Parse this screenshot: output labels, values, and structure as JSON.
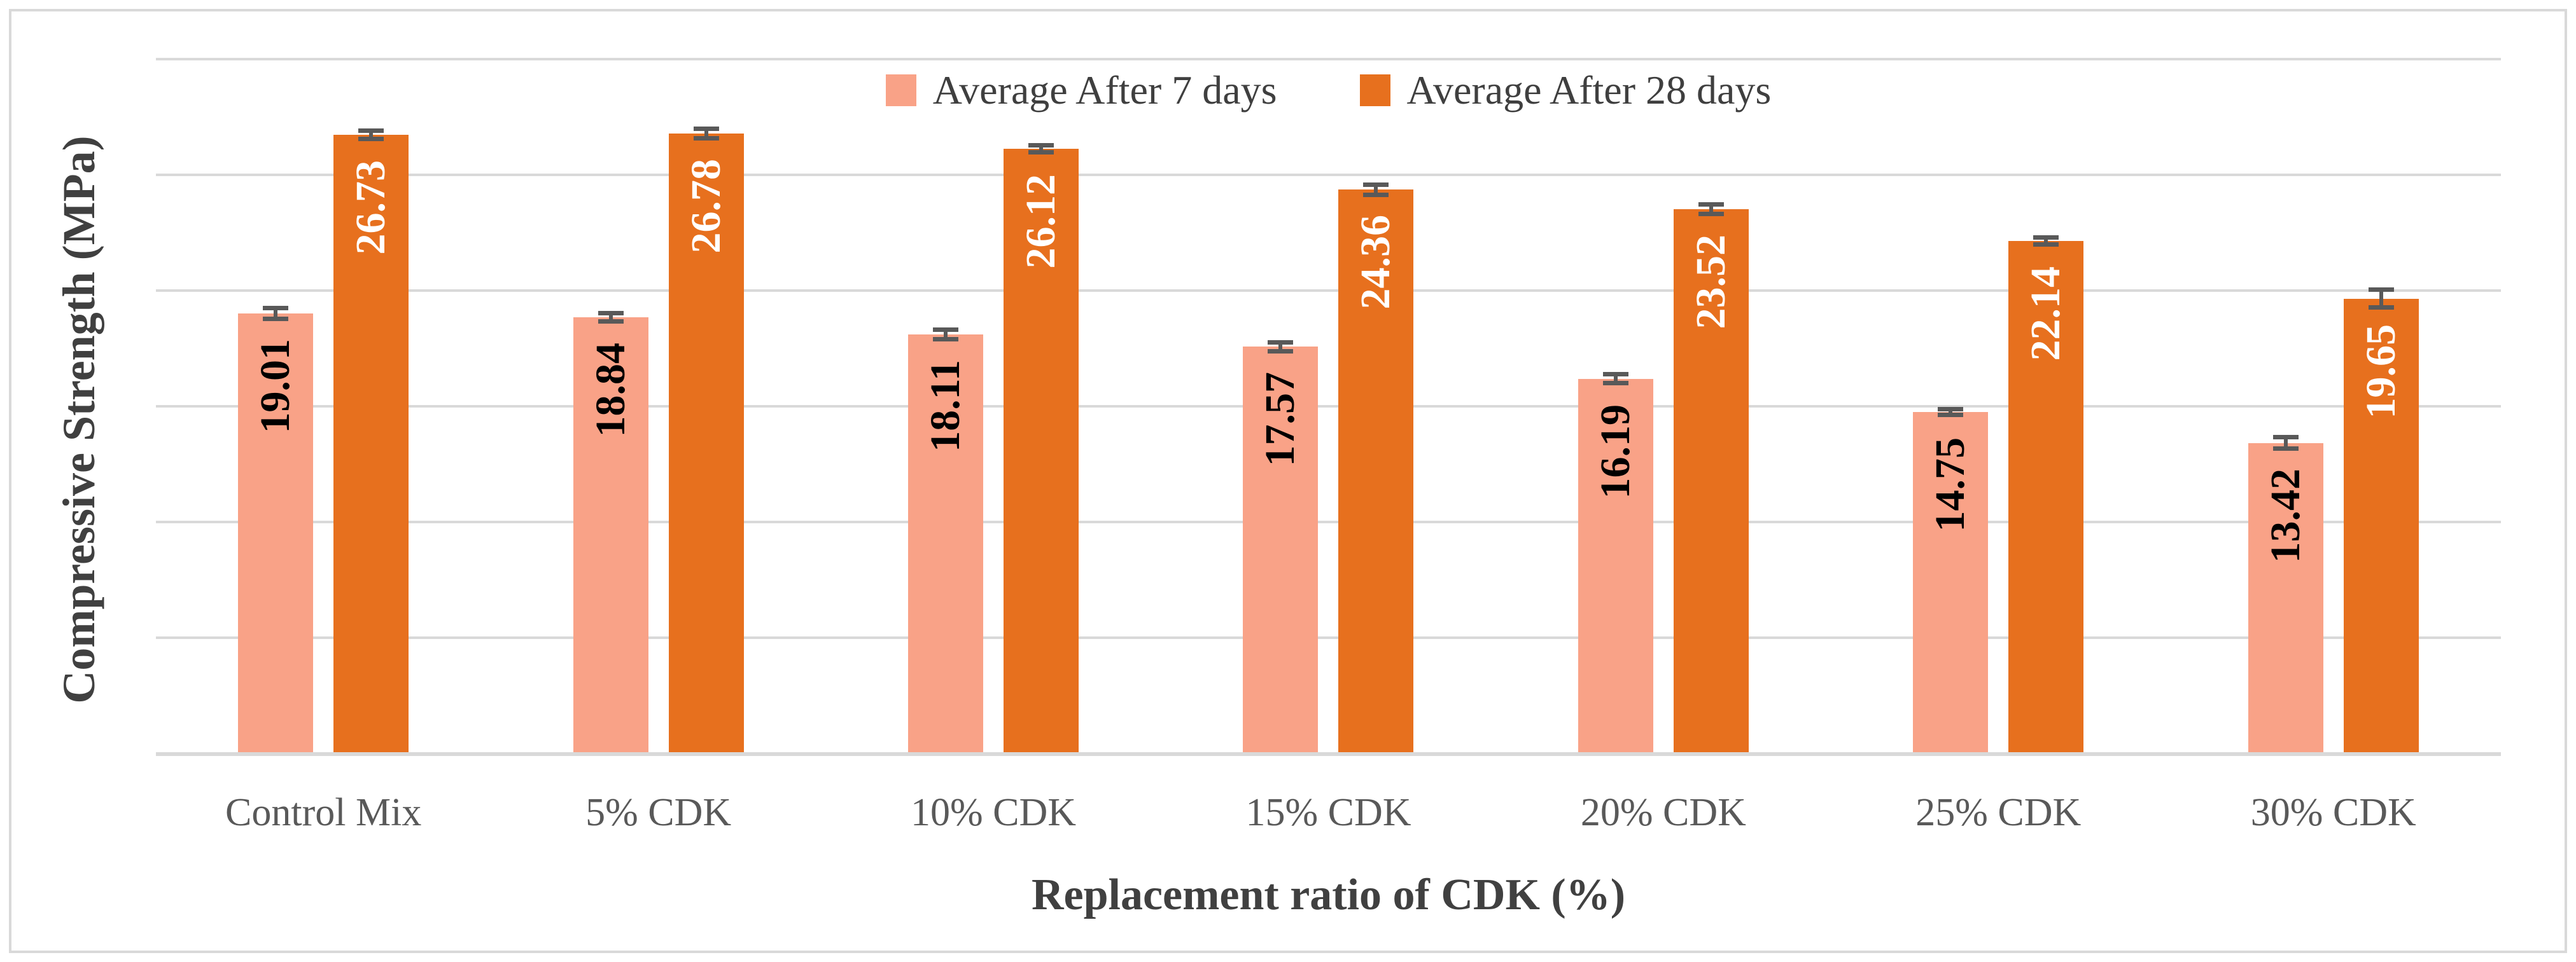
{
  "figure": {
    "frame_color": "#D9D9D9",
    "background": "#FFFFFF"
  },
  "chart_data": {
    "type": "bar",
    "title": "",
    "categories": [
      "Control Mix",
      "5% CDK",
      "10% CDK",
      "15% CDK",
      "20% CDK",
      "25% CDK",
      "30% CDK"
    ],
    "series": [
      {
        "name": "Average After 7 days",
        "color": "#F9A287",
        "label_color": "#000000",
        "values": [
          19.01,
          18.84,
          18.11,
          17.57,
          16.19,
          14.75,
          13.42
        ],
        "errors": [
          0.33,
          0.27,
          0.3,
          0.3,
          0.28,
          0.22,
          0.35
        ]
      },
      {
        "name": "Average After 28 days",
        "color": "#E7701E",
        "label_color": "#FFFFFF",
        "values": [
          26.73,
          26.78,
          26.12,
          24.36,
          23.52,
          22.14,
          19.65
        ],
        "errors": [
          0.28,
          0.3,
          0.25,
          0.32,
          0.3,
          0.25,
          0.48
        ]
      }
    ],
    "xlabel": "Replacement ratio of CDK (%)",
    "ylabel": "Compressive Strength (MPa)",
    "ylim": [
      0,
      30
    ],
    "gridline_step": 5,
    "grid": true,
    "y_tick_labels_visible": false,
    "legend_position": "top-center",
    "gridline_color": "#D9D9D9",
    "error_bar_color": "#595959",
    "value_label_rotation_deg": -90,
    "value_label_format": "2-decimals"
  }
}
